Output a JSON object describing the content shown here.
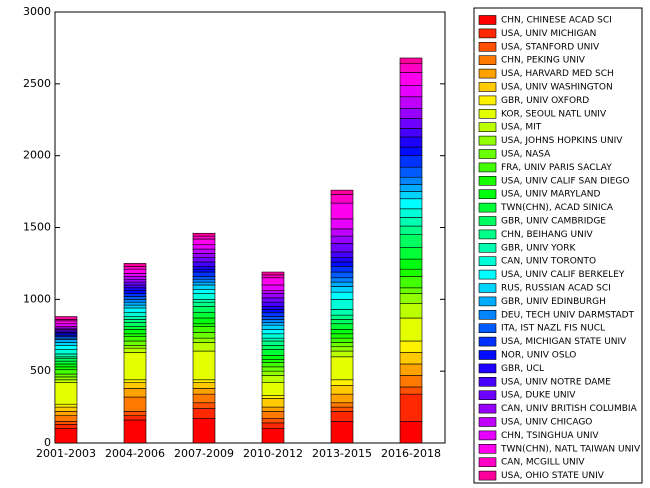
{
  "chart_data": {
    "type": "stacked_bar",
    "categories": [
      "2001-2003",
      "2004-2006",
      "2007-2009",
      "2010-2012",
      "2013-2015",
      "2016-2018"
    ],
    "ylim": [
      0,
      3000
    ],
    "yticks": [
      0,
      500,
      1000,
      1500,
      2000,
      2500,
      3000
    ],
    "series": [
      {
        "name": "CHN, CHINESE ACAD SCI",
        "color": "#ff0000",
        "values": [
          100,
          160,
          170,
          100,
          150,
          150
        ]
      },
      {
        "name": "USA, UNIV MICHIGAN",
        "color": "#ff2800",
        "values": [
          30,
          30,
          70,
          40,
          70,
          190
        ]
      },
      {
        "name": "USA, STANFORD UNIV",
        "color": "#ff5100",
        "values": [
          20,
          30,
          40,
          30,
          30,
          50
        ]
      },
      {
        "name": "CHN, PEKING UNIV",
        "color": "#ff7900",
        "values": [
          40,
          100,
          60,
          50,
          30,
          80
        ]
      },
      {
        "name": "USA, HARVARD MED SCH",
        "color": "#ffa200",
        "values": [
          30,
          60,
          40,
          30,
          60,
          80
        ]
      },
      {
        "name": "USA, UNIV WASHINGTON",
        "color": "#ffca00",
        "values": [
          30,
          40,
          40,
          60,
          60,
          80
        ]
      },
      {
        "name": "GBR, UNIV OXFORD",
        "color": "#fff200",
        "values": [
          20,
          20,
          20,
          20,
          40,
          80
        ]
      },
      {
        "name": "KOR, SEOUL NATL UNIV",
        "color": "#e3ff00",
        "values": [
          150,
          190,
          200,
          90,
          160,
          160
        ]
      },
      {
        "name": "USA, MIT",
        "color": "#bbff00",
        "values": [
          20,
          30,
          60,
          50,
          40,
          100
        ]
      },
      {
        "name": "USA, JOHNS HOPKINS UNIV",
        "color": "#92ff00",
        "values": [
          20,
          20,
          30,
          30,
          30,
          70
        ]
      },
      {
        "name": "USA, NASA",
        "color": "#6aff00",
        "values": [
          20,
          30,
          40,
          30,
          30,
          40
        ]
      },
      {
        "name": "FRA, UNIV PARIS SACLAY",
        "color": "#42ff00",
        "values": [
          30,
          30,
          40,
          30,
          30,
          80
        ]
      },
      {
        "name": "USA, UNIV CALIF SAN DIEGO",
        "color": "#1aff00",
        "values": [
          20,
          20,
          20,
          20,
          30,
          50
        ]
      },
      {
        "name": "USA, UNIV MARYLAND",
        "color": "#00ff0f",
        "values": [
          20,
          30,
          40,
          30,
          30,
          70
        ]
      },
      {
        "name": "TWN(CHN), ACAD SINICA",
        "color": "#00ff37",
        "values": [
          20,
          20,
          40,
          40,
          40,
          80
        ]
      },
      {
        "name": "GBR, UNIV CAMBRIDGE",
        "color": "#00ff60",
        "values": [
          20,
          30,
          40,
          30,
          30,
          90
        ]
      },
      {
        "name": "CHN, BEIHANG UNIV",
        "color": "#00ff88",
        "values": [
          10,
          20,
          30,
          30,
          30,
          60
        ]
      },
      {
        "name": "GBR, UNIV YORK",
        "color": "#00ffb0",
        "values": [
          20,
          20,
          20,
          20,
          40,
          60
        ]
      },
      {
        "name": "CAN, UNIV TORONTO",
        "color": "#00ffd9",
        "values": [
          30,
          30,
          40,
          30,
          70,
          60
        ]
      },
      {
        "name": "USA, UNIV CALIF BERKELEY",
        "color": "#00fdff",
        "values": [
          30,
          30,
          30,
          30,
          50,
          70
        ]
      },
      {
        "name": "RUS, RUSSIAN ACAD SCI",
        "color": "#00d4ff",
        "values": [
          20,
          20,
          30,
          30,
          40,
          50
        ]
      },
      {
        "name": "GBR, UNIV EDINBURGH",
        "color": "#00acff",
        "values": [
          20,
          20,
          20,
          20,
          30,
          50
        ]
      },
      {
        "name": "DEU, TECH UNIV DARMSTADT",
        "color": "#0084ff",
        "values": [
          10,
          20,
          20,
          20,
          30,
          50
        ]
      },
      {
        "name": "ITA, IST NAZL FIS NUCL",
        "color": "#005bff",
        "values": [
          10,
          20,
          20,
          20,
          40,
          70
        ]
      },
      {
        "name": "USA, MICHIGAN STATE UNIV",
        "color": "#0033ff",
        "values": [
          10,
          20,
          30,
          30,
          40,
          80
        ]
      },
      {
        "name": "NOR, UNIV OSLO",
        "color": "#000bff",
        "values": [
          10,
          20,
          20,
          20,
          30,
          60
        ]
      },
      {
        "name": "GBR, UCL",
        "color": "#1e00ff",
        "values": [
          10,
          20,
          20,
          20,
          30,
          70
        ]
      },
      {
        "name": "USA, UNIV NOTRE DAME",
        "color": "#4600ff",
        "values": [
          10,
          20,
          30,
          30,
          40,
          60
        ]
      },
      {
        "name": "USA, DUKE UNIV",
        "color": "#6e00ff",
        "values": [
          10,
          20,
          30,
          30,
          60,
          70
        ]
      },
      {
        "name": "CAN, UNIV BRITISH COLUMBIA",
        "color": "#9700ff",
        "values": [
          10,
          20,
          30,
          30,
          50,
          70
        ]
      },
      {
        "name": "USA, UNIV CHICAGO",
        "color": "#bf00ff",
        "values": [
          10,
          20,
          30,
          20,
          50,
          80
        ]
      },
      {
        "name": "CHN, TSINGHUA UNIV",
        "color": "#e700ff",
        "values": [
          20,
          20,
          30,
          40,
          70,
          80
        ]
      },
      {
        "name": "TWN(CHN), NATL TAIWAN UNIV",
        "color": "#ff00ee",
        "values": [
          20,
          30,
          40,
          50,
          110,
          90
        ]
      },
      {
        "name": "CAN, MCGILL UNIV",
        "color": "#ff00c6",
        "values": [
          10,
          20,
          20,
          20,
          60,
          60
        ]
      },
      {
        "name": "USA, OHIO STATE UNIV",
        "color": "#ff009d",
        "values": [
          20,
          20,
          20,
          20,
          30,
          40
        ]
      }
    ]
  }
}
